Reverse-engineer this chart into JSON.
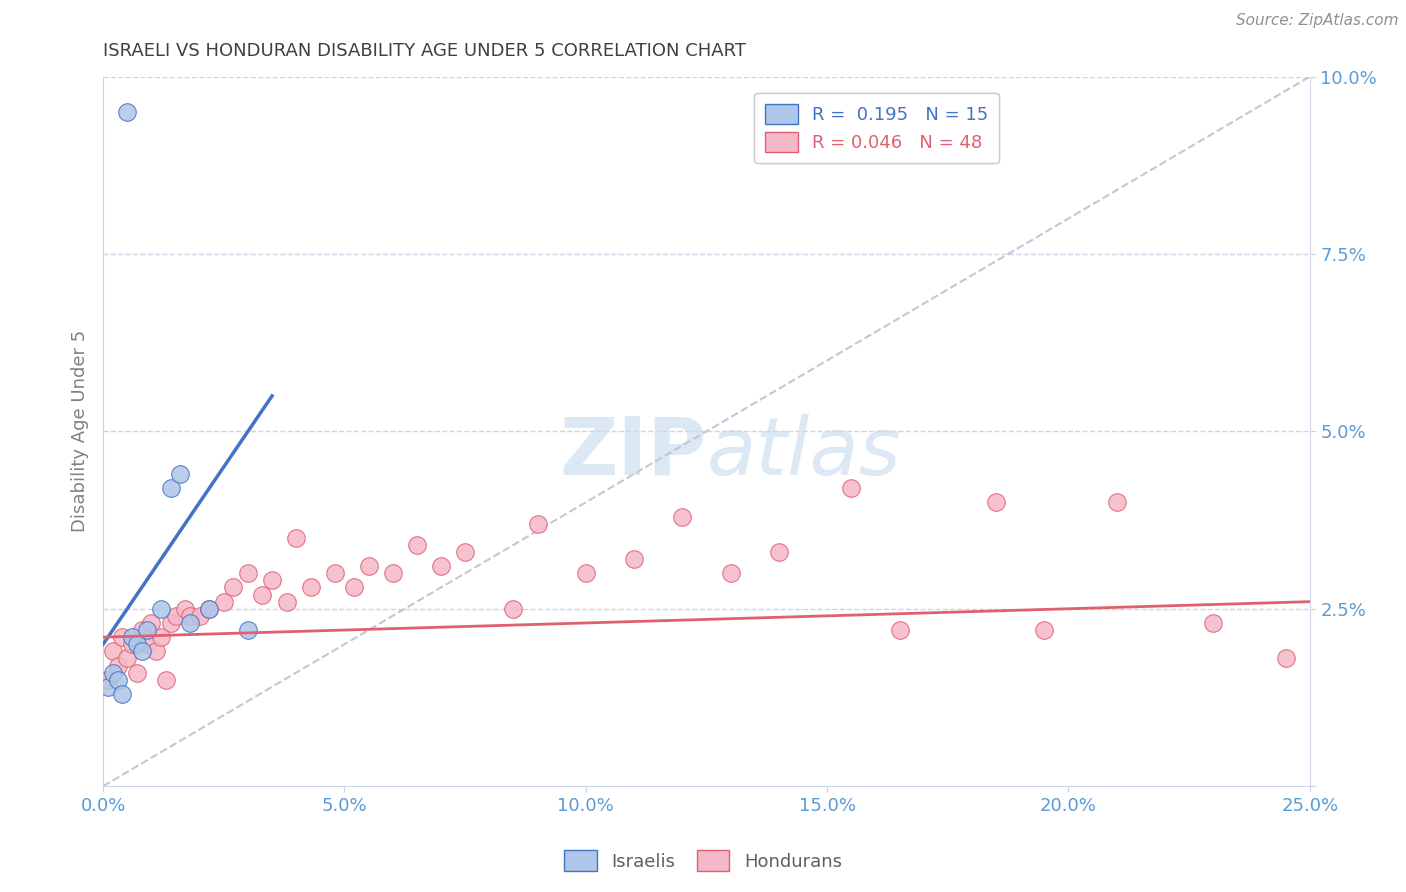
{
  "title": "ISRAELI VS HONDURAN DISABILITY AGE UNDER 5 CORRELATION CHART",
  "source": "Source: ZipAtlas.com",
  "ylabel": "Disability Age Under 5",
  "xlim": [
    0.0,
    0.25
  ],
  "ylim": [
    0.0,
    0.1
  ],
  "xticks": [
    0.0,
    0.05,
    0.1,
    0.15,
    0.2,
    0.25
  ],
  "yticks": [
    0.0,
    0.025,
    0.05,
    0.075,
    0.1
  ],
  "xtick_labels": [
    "0.0%",
    "5.0%",
    "10.0%",
    "15.0%",
    "20.0%",
    "25.0%"
  ],
  "ytick_labels": [
    "",
    "2.5%",
    "5.0%",
    "7.5%",
    "10.0%"
  ],
  "legend_r1": "R =  0.195   N = 15",
  "legend_r2": "R = 0.046   N = 48",
  "israeli_x": [
    0.001,
    0.002,
    0.003,
    0.004,
    0.005,
    0.006,
    0.007,
    0.008,
    0.009,
    0.012,
    0.014,
    0.016,
    0.018,
    0.022,
    0.03
  ],
  "israeli_y": [
    0.014,
    0.016,
    0.015,
    0.013,
    0.095,
    0.021,
    0.02,
    0.019,
    0.022,
    0.025,
    0.042,
    0.044,
    0.023,
    0.025,
    0.022
  ],
  "honduran_x": [
    0.001,
    0.002,
    0.003,
    0.004,
    0.005,
    0.006,
    0.007,
    0.008,
    0.009,
    0.01,
    0.011,
    0.012,
    0.013,
    0.014,
    0.015,
    0.017,
    0.018,
    0.02,
    0.022,
    0.025,
    0.027,
    0.03,
    0.033,
    0.035,
    0.038,
    0.04,
    0.043,
    0.048,
    0.052,
    0.055,
    0.06,
    0.065,
    0.07,
    0.075,
    0.085,
    0.09,
    0.1,
    0.11,
    0.12,
    0.13,
    0.14,
    0.155,
    0.165,
    0.185,
    0.195,
    0.21,
    0.23,
    0.245
  ],
  "honduran_y": [
    0.015,
    0.019,
    0.017,
    0.021,
    0.018,
    0.02,
    0.016,
    0.022,
    0.02,
    0.023,
    0.019,
    0.021,
    0.015,
    0.023,
    0.024,
    0.025,
    0.024,
    0.024,
    0.025,
    0.026,
    0.028,
    0.03,
    0.027,
    0.029,
    0.026,
    0.035,
    0.028,
    0.03,
    0.028,
    0.031,
    0.03,
    0.034,
    0.031,
    0.033,
    0.025,
    0.037,
    0.03,
    0.032,
    0.038,
    0.03,
    0.033,
    0.042,
    0.022,
    0.04,
    0.022,
    0.04,
    0.023,
    0.018
  ],
  "israeli_line_x0": 0.0,
  "israeli_line_y0": 0.02,
  "israeli_line_x1": 0.035,
  "israeli_line_y1": 0.055,
  "honduran_line_x0": 0.0,
  "honduran_line_y0": 0.021,
  "honduran_line_x1": 0.25,
  "honduran_line_y1": 0.026,
  "ref_line_x0": 0.0,
  "ref_line_y0": 0.0,
  "ref_line_x1": 0.25,
  "ref_line_y1": 0.1,
  "israeli_color": "#aec6e8",
  "honduran_color": "#f5b8c8",
  "israeli_line_color": "#4472c4",
  "honduran_line_color": "#e06070",
  "ref_line_color": "#c0c8d8",
  "background_color": "#ffffff",
  "grid_color": "#d0d4e8",
  "axis_label_color": "#5b9bd5",
  "title_color": "#404040",
  "watermark_color": "#dde8f5"
}
